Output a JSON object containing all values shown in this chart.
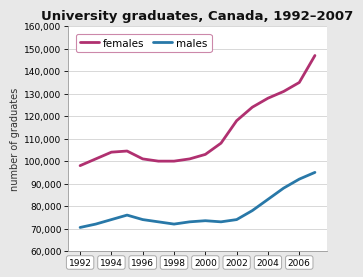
{
  "title": "University graduates, Canada, 1992–2007",
  "xlabel": "",
  "ylabel": "number of graduates",
  "years": [
    1992,
    1993,
    1994,
    1995,
    1996,
    1997,
    1998,
    1999,
    2000,
    2001,
    2002,
    2003,
    2004,
    2005,
    2006,
    2007
  ],
  "females": [
    98000,
    101000,
    104000,
    104500,
    101000,
    100000,
    100000,
    101000,
    103000,
    108000,
    118000,
    124000,
    128000,
    131000,
    135000,
    147000
  ],
  "males": [
    70500,
    72000,
    74000,
    76000,
    74000,
    73000,
    72000,
    73000,
    73500,
    73000,
    74000,
    78000,
    83000,
    88000,
    92000,
    95000
  ],
  "female_color": "#b03070",
  "male_color": "#2878a8",
  "ylim": [
    60000,
    160000
  ],
  "yticks": [
    60000,
    70000,
    80000,
    90000,
    100000,
    110000,
    120000,
    130000,
    140000,
    150000,
    160000
  ],
  "xticks": [
    1992,
    1994,
    1996,
    1998,
    2000,
    2002,
    2004,
    2006
  ],
  "plot_bg": "#ffffff",
  "fig_bg": "#e8e8e8",
  "grid_color": "#d8d8d8",
  "legend_female": "females",
  "legend_male": "males",
  "title_fontsize": 9.5,
  "label_fontsize": 7,
  "tick_fontsize": 6.5,
  "legend_fontsize": 7.5
}
